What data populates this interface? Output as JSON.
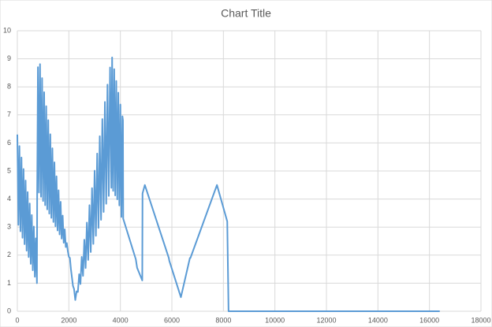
{
  "chart_data": {
    "type": "line",
    "title": "Chart Title",
    "x": [
      0,
      40,
      80,
      120,
      160,
      200,
      240,
      280,
      320,
      360,
      400,
      440,
      480,
      520,
      560,
      600,
      640,
      680,
      720,
      760,
      770,
      800,
      840,
      880,
      920,
      960,
      1000,
      1040,
      1080,
      1120,
      1160,
      1200,
      1240,
      1280,
      1320,
      1360,
      1400,
      1440,
      1480,
      1520,
      1560,
      1600,
      1640,
      1680,
      1720,
      1760,
      1800,
      1840,
      1880,
      1920,
      1960,
      2000,
      2040,
      2080,
      2120,
      2160,
      2200,
      2250,
      2300,
      2350,
      2400,
      2450,
      2500,
      2550,
      2600,
      2650,
      2700,
      2750,
      2800,
      2850,
      2900,
      2950,
      3000,
      3050,
      3100,
      3150,
      3200,
      3250,
      3300,
      3350,
      3400,
      3450,
      3500,
      3550,
      3600,
      3650,
      3680,
      3720,
      3760,
      3800,
      3840,
      3880,
      3920,
      3960,
      4000,
      4040,
      4080,
      4100,
      4110,
      4600,
      4650,
      4850,
      4860,
      4950,
      5880,
      5900,
      6350,
      6700,
      6720,
      7750,
      8150,
      8200,
      16400
    ],
    "series": [
      {
        "color": "#5b9bd5",
        "values": [
          6.3,
          3.08,
          5.89,
          2.85,
          5.48,
          2.62,
          5.07,
          2.39,
          4.66,
          2.16,
          4.25,
          1.93,
          3.84,
          1.69,
          3.43,
          1.46,
          3.02,
          1.23,
          2.6,
          1.0,
          4.2,
          8.7,
          4.23,
          8.81,
          4.08,
          8.31,
          3.93,
          7.81,
          3.78,
          7.31,
          3.63,
          6.81,
          3.48,
          6.31,
          3.33,
          5.81,
          3.18,
          5.31,
          3.03,
          4.81,
          2.88,
          4.31,
          2.74,
          3.9,
          2.59,
          3.41,
          2.44,
          2.92,
          2.29,
          2.43,
          2.14,
          1.94,
          1.9,
          1.5,
          1.2,
          0.9,
          0.8,
          0.4,
          0.71,
          0.69,
          1.32,
          0.97,
          1.94,
          1.26,
          2.55,
          1.54,
          3.16,
          1.83,
          3.78,
          2.11,
          4.39,
          2.4,
          5.01,
          2.69,
          5.62,
          2.97,
          6.24,
          3.26,
          6.85,
          3.54,
          7.46,
          3.83,
          8.08,
          4.11,
          8.69,
          4.4,
          9.05,
          4.29,
          8.63,
          4.13,
          8.21,
          3.99,
          7.79,
          3.77,
          7.37,
          3.36,
          6.95,
          6.8,
          3.3,
          1.85,
          1.55,
          1.1,
          4.2,
          4.5,
          1.9,
          1.8,
          0.5,
          1.9,
          1.9,
          4.5,
          3.2,
          0,
          0
        ]
      }
    ],
    "xlim": [
      0,
      18000
    ],
    "xticks": [
      0,
      2000,
      4000,
      6000,
      8000,
      10000,
      12000,
      14000,
      16000,
      18000
    ],
    "ylim": [
      0,
      10
    ],
    "yticks": [
      0,
      1,
      2,
      3,
      4,
      5,
      6,
      7,
      8,
      9,
      10
    ],
    "grid": true
  }
}
